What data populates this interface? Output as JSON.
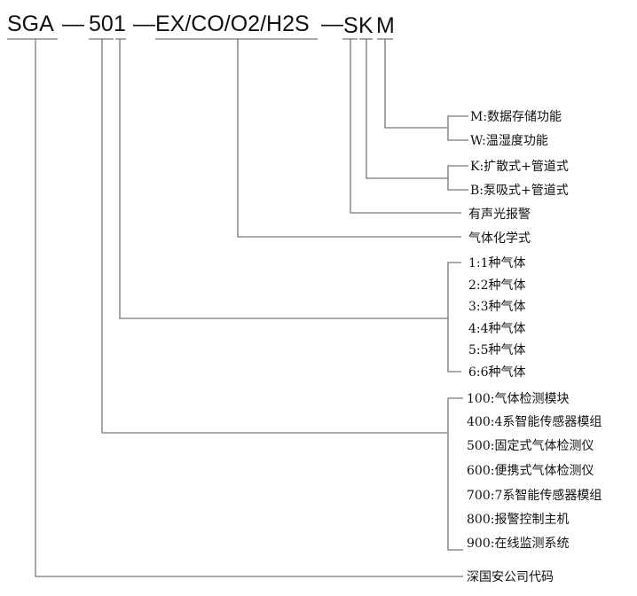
{
  "code": {
    "prefix": "SGA",
    "dash1": "—",
    "series": "50",
    "gas_count": "1",
    "dash2": "—",
    "gases": "EX/CO/O2/H2S",
    "dash3": "—",
    "alarm": "S",
    "sampling": "K",
    "function": "M"
  },
  "function_options": [
    "M:数据存储功能",
    "W:温湿度功能"
  ],
  "sampling_options": [
    "K:扩散式+管道式",
    "B:泵吸式+管道式"
  ],
  "alarm_label": "有声光报警",
  "gases_label": "气体化学式",
  "gas_count_options": [
    "1:1种气体",
    "2:2种气体",
    "3:3种气体",
    "4:4种气体",
    "5:5种气体",
    "6:6种气体"
  ],
  "series_options": [
    "100:气体检测模块",
    "400:4系智能传感器模组",
    "500:固定式气体检测仪",
    "600:便携式气体检测仪",
    "700:7系智能传感器模组",
    "800:报警控制主机",
    "900:在线监测系统"
  ],
  "prefix_label": "深国安公司代码",
  "line_color": "#777777"
}
